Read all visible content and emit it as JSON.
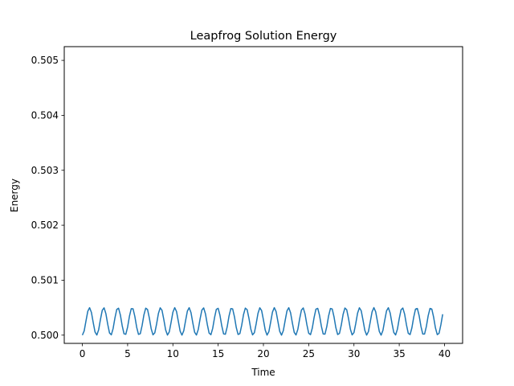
{
  "chart_data": {
    "type": "line",
    "title": "Leapfrog Solution Energy",
    "xlabel": "Time",
    "ylabel": "Energy",
    "xlim": [
      -2.0,
      42.0
    ],
    "ylim": [
      0.49985,
      0.50525
    ],
    "xticks": [
      0,
      5,
      10,
      15,
      20,
      25,
      30,
      35,
      40
    ],
    "yticks": [
      0.5,
      0.501,
      0.502,
      0.503,
      0.504,
      0.505
    ],
    "xtick_labels": [
      "0",
      "5",
      "10",
      "15",
      "20",
      "25",
      "30",
      "35",
      "40"
    ],
    "ytick_labels": [
      "0.500",
      "0.501",
      "0.502",
      "0.503",
      "0.504",
      "0.505"
    ],
    "grid": false,
    "legend": "none",
    "series": [
      {
        "color": "#1f77b4",
        "model": "E = 0.5 + 0.00025*(1 - cos(4t))",
        "t_start": 0,
        "t_end": 39.8,
        "dt": 0.2
      }
    ]
  }
}
